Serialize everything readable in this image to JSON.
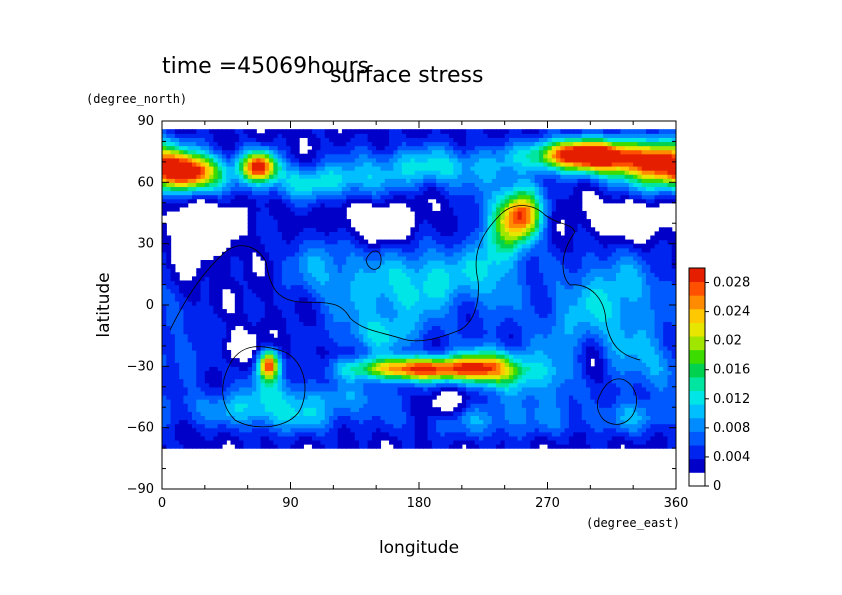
{
  "chart_data": {
    "type": "heatmap",
    "time_label": "time =45069hours",
    "title": "surface stress",
    "xlabel": "longitude",
    "ylabel": "latitude",
    "x_unit": "(degree_east)",
    "y_unit": "(degree_north)",
    "xlim": [
      0,
      360
    ],
    "ylim": [
      -90,
      90
    ],
    "x_ticks": [
      "0",
      "90",
      "180",
      "270",
      "360"
    ],
    "x_tick_values": [
      0,
      90,
      180,
      270,
      360
    ],
    "y_ticks": [
      "90",
      "60",
      "30",
      "0",
      "−30",
      "−60",
      "−90"
    ],
    "y_tick_values": [
      90,
      60,
      30,
      0,
      -30,
      -60,
      -90
    ],
    "colorbar": {
      "ticks": [
        "0.028",
        "0.024",
        "0.02",
        "0.016",
        "0.012",
        "0.008",
        "0.004",
        "0"
      ],
      "tick_values": [
        0.028,
        0.024,
        0.02,
        0.016,
        0.012,
        0.008,
        0.004,
        0
      ],
      "range": [
        0,
        0.03
      ],
      "colors": [
        "#ffffff",
        "#0000c8",
        "#0024f0",
        "#0058ff",
        "#008cff",
        "#00bfff",
        "#00e6e6",
        "#00e6a0",
        "#00d250",
        "#3cdc00",
        "#a0e600",
        "#e6e600",
        "#ffc800",
        "#ff8c00",
        "#ff5000",
        "#e61e00"
      ]
    },
    "data_domain": {
      "lat": [
        -70,
        85
      ]
    },
    "features": [
      {
        "lon": 20,
        "lat": 65,
        "value": 0.024
      },
      {
        "lon": 68,
        "lat": 68,
        "value": 0.03
      },
      {
        "lon": 255,
        "lat": 44,
        "value": 0.028
      },
      {
        "lon": 285,
        "lat": 74,
        "value": 0.029
      },
      {
        "lon": 180,
        "lat": -31,
        "value": 0.029
      },
      {
        "lon": 75,
        "lat": -29,
        "value": 0.028
      },
      {
        "lon": 300,
        "lat": -28,
        "value": 0.004
      },
      {
        "lon": 325,
        "lat": 40,
        "value": 0.004
      },
      {
        "lon": 205,
        "lat": 40,
        "value": 0.006
      },
      {
        "lon": 160,
        "lat": 8,
        "value": 0.008
      },
      {
        "lon": 40,
        "lat": -48,
        "value": 0.005
      }
    ]
  }
}
